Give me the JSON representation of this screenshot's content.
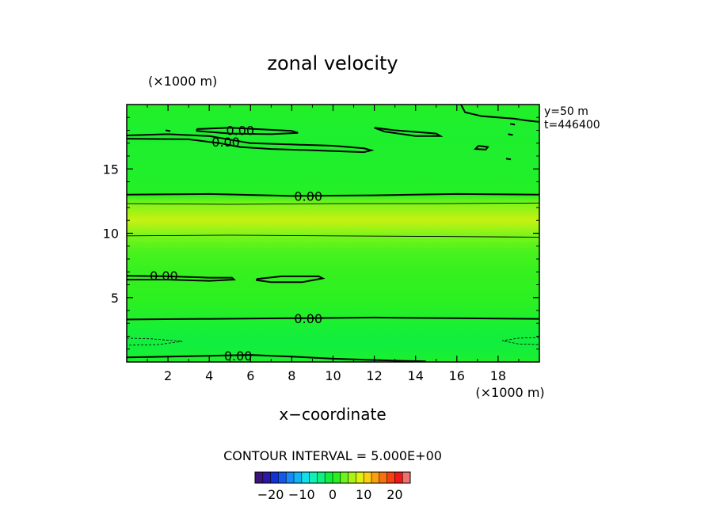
{
  "chart_data": {
    "type": "heatmap",
    "title": "zonal velocity",
    "xlabel": "x−coordinate",
    "x_unit": "(×1000 m)",
    "y_unit": "(×1000 m)",
    "xlim": [
      0,
      20
    ],
    "ylim": [
      0,
      20
    ],
    "x_ticks": [
      2,
      4,
      6,
      8,
      10,
      12,
      14,
      16,
      18
    ],
    "y_ticks": [
      5,
      10,
      15
    ],
    "x_tick_labels": [
      "2",
      "4",
      "6",
      "8",
      "10",
      "12",
      "14",
      "16",
      "18"
    ],
    "y_tick_labels": [
      "5",
      "10",
      "15"
    ],
    "info_lines": [
      "y=50  m",
      "t=446400"
    ],
    "contour_interval_label": "CONTOUR INTERVAL = 5.000E+00",
    "colorbar": {
      "range": [
        -25,
        25
      ],
      "tick_values": [
        -20,
        -10,
        0,
        10,
        20
      ],
      "tick_labels": [
        "−20",
        "−10",
        "0",
        "10",
        "20"
      ],
      "colors": [
        "#3a1478",
        "#2a18a8",
        "#1430d8",
        "#1458f0",
        "#1a88f8",
        "#10b4f4",
        "#10e0e8",
        "#10f0b8",
        "#10f080",
        "#10ee40",
        "#28f020",
        "#6cf41c",
        "#a8f414",
        "#e0f010",
        "#f8d010",
        "#f8a010",
        "#f87010",
        "#f84010",
        "#f01818",
        "#f07070"
      ]
    },
    "field_profile": {
      "y": [
        0,
        0.5,
        1.5,
        2.5,
        3.5,
        5,
        7,
        8.5,
        9.8,
        11,
        12.3,
        13,
        14.5,
        16,
        18,
        19.5,
        20
      ],
      "u": [
        0.5,
        -0.5,
        -1.2,
        -0.6,
        0.5,
        1.5,
        1.8,
        2.5,
        4.5,
        8.0,
        4.8,
        1.0,
        0.4,
        0.3,
        0.2,
        0.6,
        1.0
      ]
    },
    "contour_labels": [
      {
        "text": "0.00",
        "x": 5.5,
        "y": 18.0
      },
      {
        "text": "0.00",
        "x": 4.8,
        "y": 17.1
      },
      {
        "text": "0.00",
        "x": 8.8,
        "y": 12.9
      },
      {
        "text": "0.00",
        "x": 1.8,
        "y": 6.7
      },
      {
        "text": "0.00",
        "x": 8.8,
        "y": 3.4
      },
      {
        "text": "0.00",
        "x": 5.4,
        "y": 0.5
      }
    ],
    "zero_contours": [
      [
        [
          0,
          13.0
        ],
        [
          4,
          13.05
        ],
        [
          8,
          12.9
        ],
        [
          12,
          12.95
        ],
        [
          16,
          13.05
        ],
        [
          20,
          13.0
        ]
      ],
      [
        [
          0,
          3.3
        ],
        [
          4,
          3.35
        ],
        [
          8,
          3.4
        ],
        [
          12,
          3.45
        ],
        [
          16,
          3.4
        ],
        [
          20,
          3.35
        ]
      ],
      [
        [
          0,
          0.35
        ],
        [
          3,
          0.45
        ],
        [
          6,
          0.55
        ],
        [
          8,
          0.42
        ],
        [
          10,
          0.25
        ],
        [
          13,
          0.1
        ],
        [
          14.5,
          0.05
        ]
      ],
      [
        [
          0,
          6.7
        ],
        [
          2,
          6.65
        ],
        [
          4,
          6.55
        ],
        [
          5.1,
          6.55
        ],
        [
          5.2,
          6.4
        ],
        [
          4,
          6.3
        ],
        [
          2,
          6.4
        ],
        [
          0,
          6.4
        ]
      ],
      [
        [
          6.3,
          6.45
        ],
        [
          7.5,
          6.65
        ],
        [
          9.3,
          6.65
        ],
        [
          9.5,
          6.5
        ],
        [
          8.5,
          6.2
        ],
        [
          7,
          6.2
        ],
        [
          6.3,
          6.35
        ],
        [
          6.3,
          6.45
        ]
      ],
      [
        [
          0,
          17.6
        ],
        [
          2,
          17.7
        ],
        [
          4,
          17.55
        ],
        [
          6,
          17.0
        ],
        [
          8,
          16.9
        ],
        [
          10,
          16.8
        ],
        [
          11.5,
          16.6
        ],
        [
          11.85,
          16.45
        ],
        [
          11.5,
          16.3
        ],
        [
          9,
          16.45
        ],
        [
          7,
          16.55
        ],
        [
          5.5,
          16.7
        ],
        [
          4.5,
          17.0
        ],
        [
          3,
          17.3
        ],
        [
          0,
          17.35
        ]
      ],
      [
        [
          3.4,
          18.1
        ],
        [
          5,
          18.2
        ],
        [
          8,
          17.95
        ],
        [
          8.3,
          17.8
        ],
        [
          7,
          17.7
        ],
        [
          5,
          17.75
        ],
        [
          3.4,
          17.95
        ],
        [
          3.4,
          18.1
        ]
      ],
      [
        [
          12.0,
          18.2
        ],
        [
          13,
          18.0
        ],
        [
          15,
          17.75
        ],
        [
          15.2,
          17.55
        ],
        [
          14,
          17.55
        ],
        [
          12.5,
          17.9
        ],
        [
          12.0,
          18.2
        ]
      ],
      [
        [
          16.2,
          20
        ],
        [
          16.4,
          19.4
        ],
        [
          17.2,
          19.1
        ],
        [
          18.8,
          18.9
        ],
        [
          19.4,
          18.75
        ],
        [
          20,
          18.65
        ]
      ],
      [
        [
          17.05,
          16.8
        ],
        [
          17.5,
          16.7
        ],
        [
          17.4,
          16.5
        ],
        [
          16.9,
          16.55
        ],
        [
          17.05,
          16.8
        ]
      ]
    ],
    "zero_contour_ticks": [
      {
        "x": 2.0,
        "y": 18.0
      },
      {
        "x": 18.7,
        "y": 18.5
      },
      {
        "x": 18.6,
        "y": 17.7
      },
      {
        "x": 18.5,
        "y": 15.8
      }
    ],
    "neg_contours": [
      [
        [
          0,
          1.85
        ],
        [
          1.2,
          1.8
        ],
        [
          2.7,
          1.6
        ],
        [
          1.5,
          1.35
        ],
        [
          0,
          1.3
        ]
      ],
      [
        [
          20,
          1.9
        ],
        [
          19,
          1.85
        ],
        [
          18.2,
          1.65
        ],
        [
          19,
          1.4
        ],
        [
          20,
          1.35
        ]
      ]
    ],
    "thin_contours": [
      [
        [
          0,
          12.3
        ],
        [
          5,
          12.25
        ],
        [
          10,
          12.3
        ],
        [
          15,
          12.3
        ],
        [
          20,
          12.35
        ]
      ],
      [
        [
          0,
          9.8
        ],
        [
          5,
          9.85
        ],
        [
          10,
          9.8
        ],
        [
          15,
          9.75
        ],
        [
          20,
          9.7
        ]
      ]
    ]
  }
}
